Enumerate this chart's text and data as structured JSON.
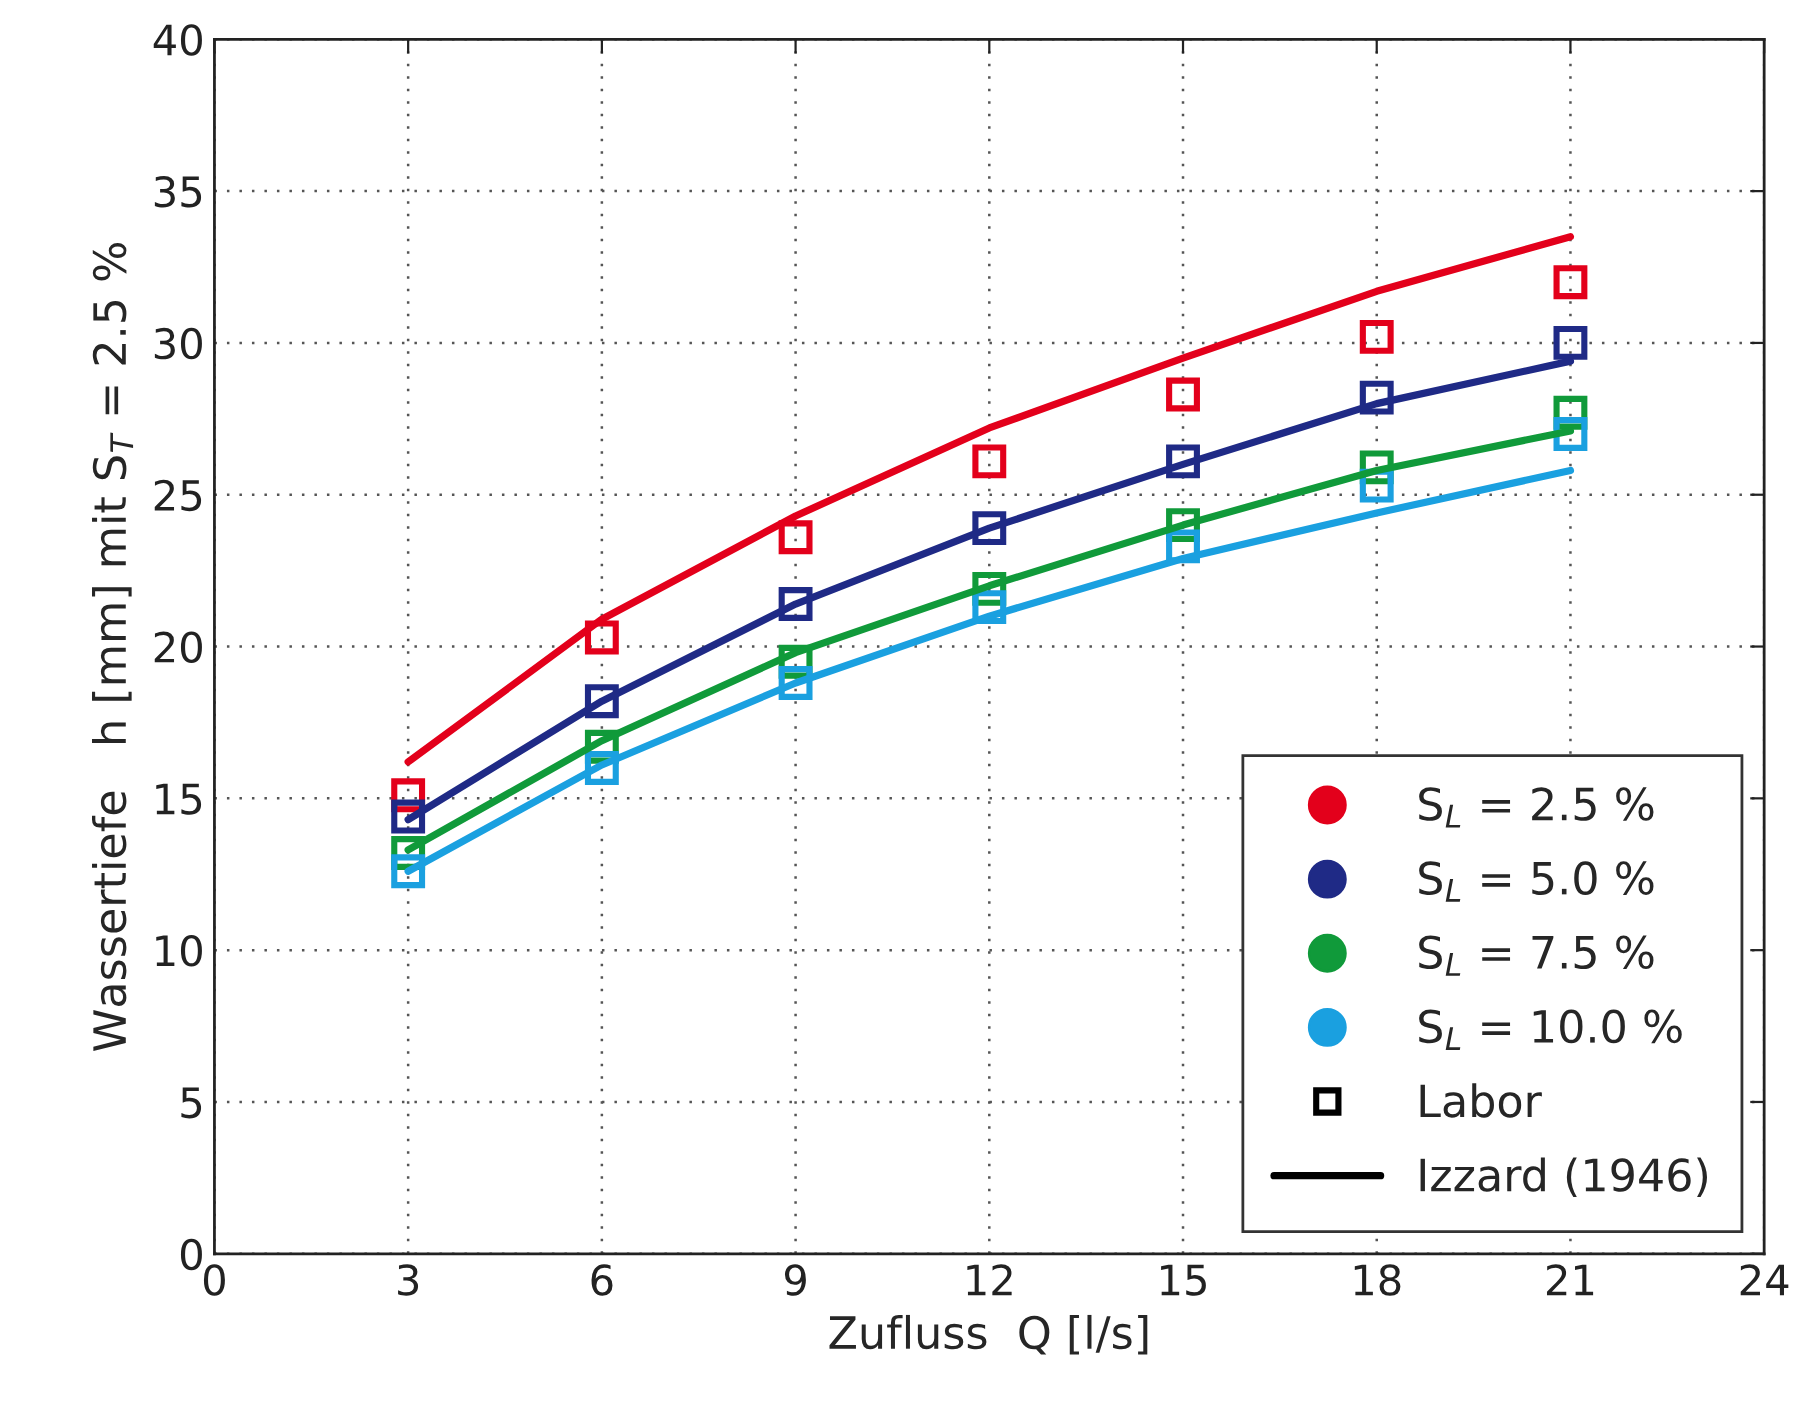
{
  "chart_data": {
    "type": "line",
    "xlabel": "Zufluss  Q [l/s]",
    "ylabel": "Wassertiefe   h [mm] mit S$_{T}$ = 2.5 %",
    "x": [
      3,
      6,
      9,
      12,
      15,
      18,
      21
    ],
    "xlim": [
      0,
      24
    ],
    "xticks": [
      0,
      3,
      6,
      9,
      12,
      15,
      18,
      21,
      24
    ],
    "ylim": [
      0,
      40
    ],
    "yticks": [
      0,
      5,
      10,
      15,
      20,
      25,
      30,
      35,
      40
    ],
    "grid": true,
    "legend": "bottom right",
    "series": [
      {
        "name": "S$_{L}$ = 2.5 %",
        "type": "scatter",
        "marker": "square",
        "color": "#e3001b",
        "values": [
          15.1,
          20.3,
          23.6,
          26.1,
          28.3,
          30.2,
          32.0
        ]
      },
      {
        "name": "S$_{L}$ = 5.0 %",
        "type": "scatter",
        "marker": "square",
        "color": "#1f2a86",
        "values": [
          14.4,
          18.2,
          21.4,
          23.9,
          26.1,
          28.2,
          30.0
        ]
      },
      {
        "name": "S$_{L}$ = 7.5 %",
        "type": "scatter",
        "marker": "square",
        "color": "#109a3a",
        "values": [
          13.2,
          16.7,
          19.5,
          21.9,
          24.0,
          25.9,
          27.7
        ]
      },
      {
        "name": "S$_{L}$ = 10.0 %",
        "type": "scatter",
        "marker": "square",
        "color": "#1aa0e0",
        "values": [
          12.6,
          16.0,
          18.8,
          21.3,
          23.3,
          25.3,
          27.0
        ]
      },
      {
        "color": "#e3001b",
        "values": [
          16.2,
          20.9,
          24.3,
          27.2,
          29.5,
          31.7,
          33.5
        ]
      },
      {
        "color": "#1f2a86",
        "values": [
          14.3,
          18.2,
          21.4,
          23.9,
          26.0,
          28.0,
          29.4
        ]
      },
      {
        "color": "#109a3a",
        "values": [
          13.3,
          16.9,
          19.8,
          22.0,
          24.0,
          25.8,
          27.1
        ]
      },
      {
        "color": "#1aa0e0",
        "values": [
          12.6,
          16.1,
          18.8,
          21.0,
          22.9,
          24.4,
          25.8
        ]
      },
      {
        "name": "Labor",
        "type": "scatter",
        "marker": "square",
        "color": "#000000",
        "values": [
          null,
          null,
          null,
          null,
          null,
          null,
          null
        ]
      },
      {
        "name": "Izzard (1946)",
        "color": "#000000",
        "values": [
          null,
          null,
          null,
          null,
          null,
          null,
          null
        ]
      }
    ]
  }
}
